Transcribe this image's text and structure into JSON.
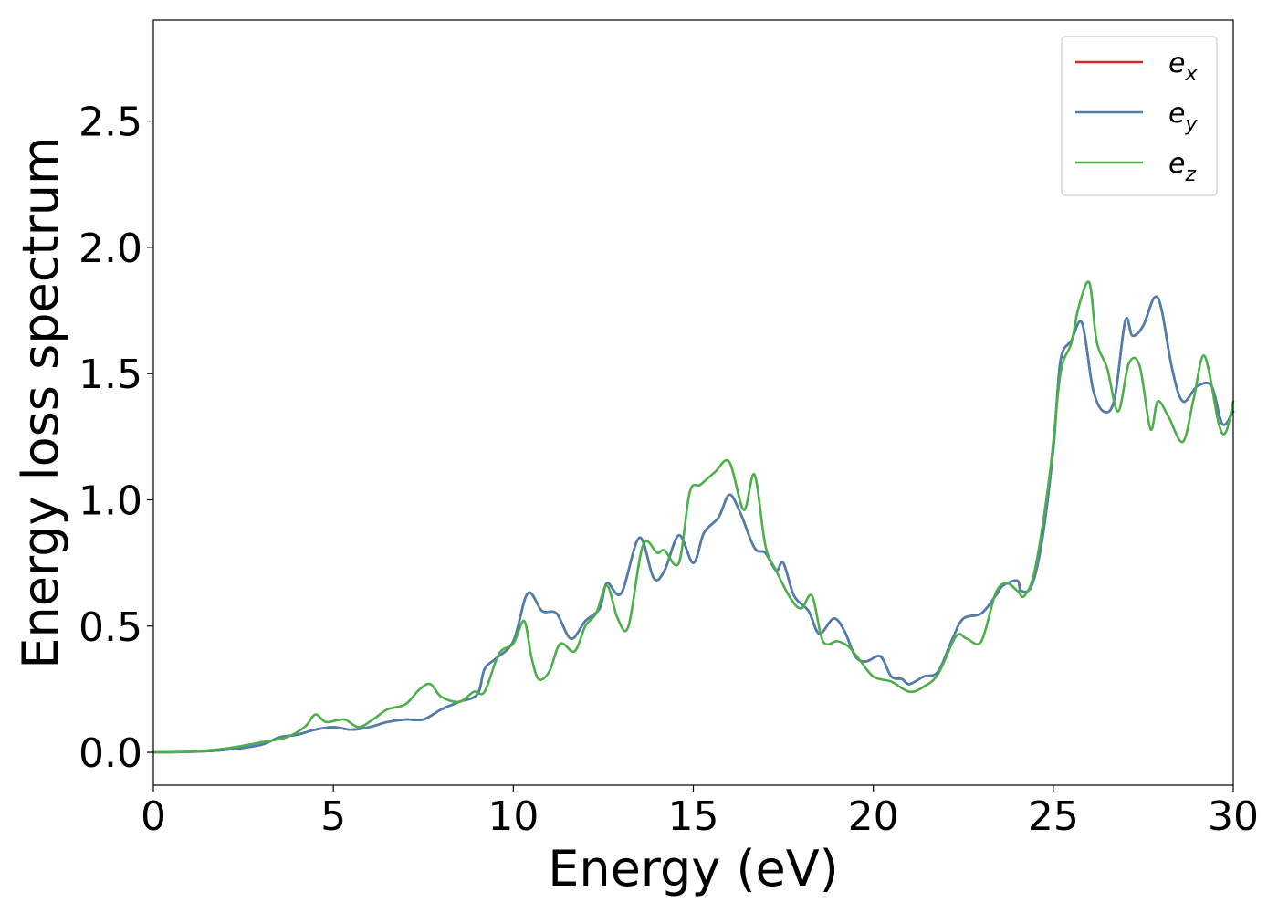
{
  "chart_data": {
    "type": "line",
    "title": "",
    "xlabel": "Energy (eV)",
    "ylabel": "Energy loss spectrum",
    "xlim": [
      0,
      30
    ],
    "ylim": [
      -0.13,
      2.9
    ],
    "x_ticks": [
      0,
      5,
      10,
      15,
      20,
      25,
      30
    ],
    "x_tick_labels": [
      "0",
      "5",
      "10",
      "15",
      "20",
      "25",
      "30"
    ],
    "y_ticks": [
      0.0,
      0.5,
      1.0,
      1.5,
      2.0,
      2.5
    ],
    "y_tick_labels": [
      "0.0",
      "0.5",
      "1.0",
      "1.5",
      "2.0",
      "2.5"
    ],
    "grid": false,
    "legend_position": "top-right",
    "series": [
      {
        "name": "e_x",
        "label_base": "e",
        "label_sub": "x",
        "color": "#d62728",
        "points": [
          [
            0,
            0.0
          ],
          [
            1,
            0.002
          ],
          [
            2,
            0.01
          ],
          [
            3,
            0.03
          ],
          [
            3.5,
            0.06
          ],
          [
            4,
            0.07
          ],
          [
            4.5,
            0.09
          ],
          [
            5,
            0.1
          ],
          [
            5.5,
            0.09
          ],
          [
            6,
            0.1
          ],
          [
            6.5,
            0.12
          ],
          [
            7,
            0.13
          ],
          [
            7.5,
            0.13
          ],
          [
            8,
            0.17
          ],
          [
            8.5,
            0.2
          ],
          [
            9,
            0.23
          ],
          [
            9.2,
            0.33
          ],
          [
            9.5,
            0.37
          ],
          [
            10,
            0.44
          ],
          [
            10.4,
            0.63
          ],
          [
            10.8,
            0.56
          ],
          [
            11.2,
            0.55
          ],
          [
            11.6,
            0.45
          ],
          [
            12,
            0.52
          ],
          [
            12.4,
            0.57
          ],
          [
            12.6,
            0.67
          ],
          [
            13,
            0.63
          ],
          [
            13.5,
            0.85
          ],
          [
            13.9,
            0.69
          ],
          [
            14.2,
            0.72
          ],
          [
            14.6,
            0.86
          ],
          [
            15,
            0.75
          ],
          [
            15.3,
            0.87
          ],
          [
            15.7,
            0.93
          ],
          [
            16,
            1.02
          ],
          [
            16.3,
            0.95
          ],
          [
            16.7,
            0.81
          ],
          [
            17,
            0.79
          ],
          [
            17.3,
            0.72
          ],
          [
            17.5,
            0.75
          ],
          [
            17.8,
            0.62
          ],
          [
            18.2,
            0.56
          ],
          [
            18.5,
            0.47
          ],
          [
            18.9,
            0.53
          ],
          [
            19.2,
            0.48
          ],
          [
            19.5,
            0.38
          ],
          [
            19.8,
            0.36
          ],
          [
            20.2,
            0.38
          ],
          [
            20.5,
            0.3
          ],
          [
            20.8,
            0.29
          ],
          [
            21,
            0.27
          ],
          [
            21.4,
            0.3
          ],
          [
            21.8,
            0.32
          ],
          [
            22.2,
            0.45
          ],
          [
            22.5,
            0.53
          ],
          [
            23,
            0.55
          ],
          [
            23.4,
            0.62
          ],
          [
            23.6,
            0.66
          ],
          [
            24,
            0.68
          ],
          [
            24.1,
            0.64
          ],
          [
            24.4,
            0.66
          ],
          [
            24.7,
            0.85
          ],
          [
            25,
            1.2
          ],
          [
            25.2,
            1.55
          ],
          [
            25.5,
            1.63
          ],
          [
            25.8,
            1.7
          ],
          [
            26.1,
            1.44
          ],
          [
            26.4,
            1.35
          ],
          [
            26.7,
            1.4
          ],
          [
            27,
            1.71
          ],
          [
            27.2,
            1.65
          ],
          [
            27.5,
            1.69
          ],
          [
            27.8,
            1.8
          ],
          [
            28,
            1.76
          ],
          [
            28.3,
            1.52
          ],
          [
            28.6,
            1.39
          ],
          [
            29,
            1.45
          ],
          [
            29.4,
            1.45
          ],
          [
            29.7,
            1.3
          ],
          [
            30,
            1.35
          ]
        ]
      },
      {
        "name": "e_y",
        "label_base": "e",
        "label_sub": "y",
        "color": "#4a7fb0",
        "points": [
          [
            0,
            0.0
          ],
          [
            1,
            0.002
          ],
          [
            2,
            0.01
          ],
          [
            3,
            0.03
          ],
          [
            3.5,
            0.06
          ],
          [
            4,
            0.07
          ],
          [
            4.5,
            0.09
          ],
          [
            5,
            0.1
          ],
          [
            5.5,
            0.09
          ],
          [
            6,
            0.1
          ],
          [
            6.5,
            0.12
          ],
          [
            7,
            0.13
          ],
          [
            7.5,
            0.13
          ],
          [
            8,
            0.17
          ],
          [
            8.5,
            0.2
          ],
          [
            9,
            0.23
          ],
          [
            9.2,
            0.33
          ],
          [
            9.5,
            0.37
          ],
          [
            10,
            0.44
          ],
          [
            10.4,
            0.63
          ],
          [
            10.8,
            0.56
          ],
          [
            11.2,
            0.55
          ],
          [
            11.6,
            0.45
          ],
          [
            12,
            0.52
          ],
          [
            12.4,
            0.57
          ],
          [
            12.6,
            0.67
          ],
          [
            13,
            0.63
          ],
          [
            13.5,
            0.85
          ],
          [
            13.9,
            0.69
          ],
          [
            14.2,
            0.72
          ],
          [
            14.6,
            0.86
          ],
          [
            15,
            0.75
          ],
          [
            15.3,
            0.87
          ],
          [
            15.7,
            0.93
          ],
          [
            16,
            1.02
          ],
          [
            16.3,
            0.95
          ],
          [
            16.7,
            0.81
          ],
          [
            17,
            0.79
          ],
          [
            17.3,
            0.72
          ],
          [
            17.5,
            0.75
          ],
          [
            17.8,
            0.62
          ],
          [
            18.2,
            0.56
          ],
          [
            18.5,
            0.47
          ],
          [
            18.9,
            0.53
          ],
          [
            19.2,
            0.48
          ],
          [
            19.5,
            0.38
          ],
          [
            19.8,
            0.36
          ],
          [
            20.2,
            0.38
          ],
          [
            20.5,
            0.3
          ],
          [
            20.8,
            0.29
          ],
          [
            21,
            0.27
          ],
          [
            21.4,
            0.3
          ],
          [
            21.8,
            0.32
          ],
          [
            22.2,
            0.45
          ],
          [
            22.5,
            0.53
          ],
          [
            23,
            0.55
          ],
          [
            23.4,
            0.62
          ],
          [
            23.6,
            0.66
          ],
          [
            24,
            0.68
          ],
          [
            24.1,
            0.64
          ],
          [
            24.4,
            0.66
          ],
          [
            24.7,
            0.85
          ],
          [
            25,
            1.2
          ],
          [
            25.2,
            1.55
          ],
          [
            25.5,
            1.63
          ],
          [
            25.8,
            1.7
          ],
          [
            26.1,
            1.44
          ],
          [
            26.4,
            1.35
          ],
          [
            26.7,
            1.4
          ],
          [
            27,
            1.71
          ],
          [
            27.2,
            1.65
          ],
          [
            27.5,
            1.69
          ],
          [
            27.8,
            1.8
          ],
          [
            28,
            1.76
          ],
          [
            28.3,
            1.52
          ],
          [
            28.6,
            1.39
          ],
          [
            29,
            1.45
          ],
          [
            29.4,
            1.45
          ],
          [
            29.7,
            1.3
          ],
          [
            30,
            1.35
          ]
        ]
      },
      {
        "name": "e_z",
        "label_base": "e",
        "label_sub": "z",
        "color": "#4daf4a",
        "points": [
          [
            0,
            0.0
          ],
          [
            1,
            0.003
          ],
          [
            2,
            0.015
          ],
          [
            3,
            0.04
          ],
          [
            3.7,
            0.06
          ],
          [
            4.2,
            0.1
          ],
          [
            4.5,
            0.15
          ],
          [
            4.8,
            0.12
          ],
          [
            5.3,
            0.13
          ],
          [
            5.7,
            0.1
          ],
          [
            6.1,
            0.13
          ],
          [
            6.5,
            0.17
          ],
          [
            7,
            0.19
          ],
          [
            7.4,
            0.25
          ],
          [
            7.7,
            0.27
          ],
          [
            8,
            0.22
          ],
          [
            8.5,
            0.2
          ],
          [
            8.9,
            0.24
          ],
          [
            9.2,
            0.24
          ],
          [
            9.6,
            0.39
          ],
          [
            10,
            0.43
          ],
          [
            10.3,
            0.52
          ],
          [
            10.5,
            0.38
          ],
          [
            10.7,
            0.29
          ],
          [
            11,
            0.32
          ],
          [
            11.3,
            0.43
          ],
          [
            11.7,
            0.4
          ],
          [
            12,
            0.5
          ],
          [
            12.3,
            0.55
          ],
          [
            12.6,
            0.66
          ],
          [
            12.9,
            0.53
          ],
          [
            13.2,
            0.5
          ],
          [
            13.6,
            0.82
          ],
          [
            14,
            0.79
          ],
          [
            14.2,
            0.8
          ],
          [
            14.6,
            0.75
          ],
          [
            14.9,
            1.03
          ],
          [
            15.2,
            1.06
          ],
          [
            15.6,
            1.11
          ],
          [
            16,
            1.15
          ],
          [
            16.4,
            0.96
          ],
          [
            16.7,
            1.1
          ],
          [
            17,
            0.82
          ],
          [
            17.3,
            0.72
          ],
          [
            17.7,
            0.61
          ],
          [
            18,
            0.57
          ],
          [
            18.3,
            0.62
          ],
          [
            18.6,
            0.44
          ],
          [
            19,
            0.44
          ],
          [
            19.3,
            0.42
          ],
          [
            19.6,
            0.37
          ],
          [
            20,
            0.3
          ],
          [
            20.5,
            0.28
          ],
          [
            21,
            0.24
          ],
          [
            21.4,
            0.26
          ],
          [
            21.8,
            0.31
          ],
          [
            22.3,
            0.46
          ],
          [
            22.6,
            0.45
          ],
          [
            23,
            0.44
          ],
          [
            23.4,
            0.63
          ],
          [
            23.7,
            0.67
          ],
          [
            24,
            0.64
          ],
          [
            24.2,
            0.62
          ],
          [
            24.5,
            0.73
          ],
          [
            24.9,
            1.1
          ],
          [
            25.2,
            1.5
          ],
          [
            25.5,
            1.62
          ],
          [
            25.7,
            1.76
          ],
          [
            26,
            1.86
          ],
          [
            26.2,
            1.63
          ],
          [
            26.5,
            1.52
          ],
          [
            26.8,
            1.35
          ],
          [
            27.1,
            1.54
          ],
          [
            27.4,
            1.53
          ],
          [
            27.7,
            1.28
          ],
          [
            27.9,
            1.39
          ],
          [
            28.2,
            1.33
          ],
          [
            28.6,
            1.23
          ],
          [
            28.9,
            1.4
          ],
          [
            29.2,
            1.57
          ],
          [
            29.6,
            1.3
          ],
          [
            29.8,
            1.27
          ],
          [
            30,
            1.39
          ]
        ]
      }
    ]
  }
}
